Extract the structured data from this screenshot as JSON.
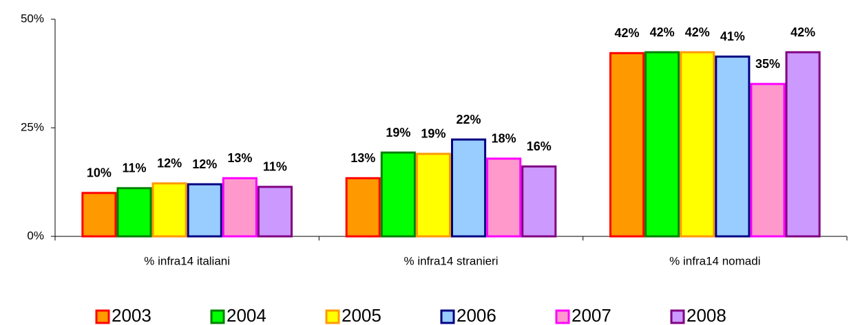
{
  "chart_data": {
    "type": "bar",
    "categories": [
      "% infra14 italiani",
      "% infra14 stranieri",
      "% infra14 nomadi"
    ],
    "series": [
      {
        "name": "2003",
        "color": "#FF9900",
        "edgecolor": "#FF0000",
        "values": [
          10.0,
          13.4,
          42.2
        ],
        "value_labels": [
          "10%",
          "13%",
          "42%"
        ]
      },
      {
        "name": "2004",
        "color": "#00FF00",
        "edgecolor": "#008000",
        "values": [
          11.1,
          19.3,
          42.4
        ],
        "value_labels": [
          "11%",
          "19%",
          "42%"
        ]
      },
      {
        "name": "2005",
        "color": "#FFFF00",
        "edgecolor": "#FF9900",
        "values": [
          12.2,
          19.0,
          42.4
        ],
        "value_labels": [
          "12%",
          "19%",
          "42%"
        ]
      },
      {
        "name": "2006",
        "color": "#99CCFF",
        "edgecolor": "#000080",
        "values": [
          12.0,
          22.3,
          41.4
        ],
        "value_labels": [
          "12%",
          "22%",
          "41%"
        ]
      },
      {
        "name": "2007",
        "color": "#FF99CC",
        "edgecolor": "#FF00FF",
        "values": [
          13.4,
          17.9,
          35.1
        ],
        "value_labels": [
          "13%",
          "18%",
          "35%"
        ]
      },
      {
        "name": "2008",
        "color": "#CC99FF",
        "edgecolor": "#800080",
        "values": [
          11.4,
          16.1,
          42.4
        ],
        "value_labels": [
          "11%",
          "16%",
          "42%"
        ]
      }
    ],
    "ylim": [
      0,
      50
    ],
    "yticks": [
      {
        "value": 0,
        "label": "0%"
      },
      {
        "value": 25,
        "label": "25%"
      },
      {
        "value": 50,
        "label": "50%"
      }
    ],
    "grid": false,
    "legend": "bottom"
  }
}
